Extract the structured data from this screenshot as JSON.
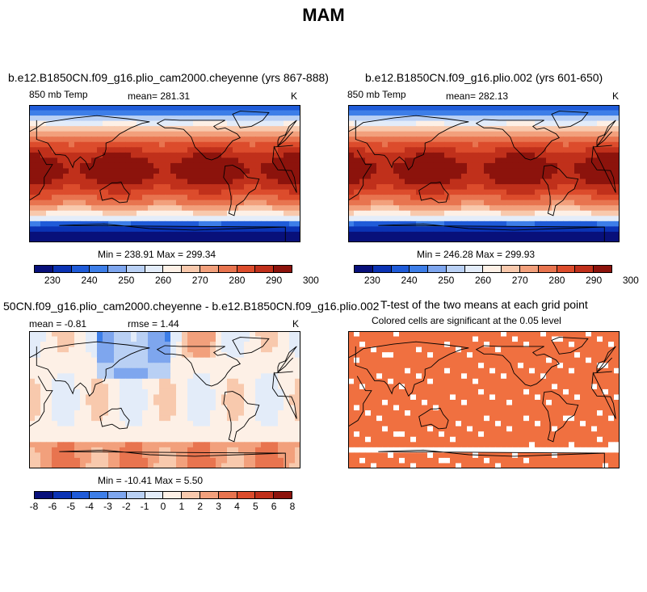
{
  "supertitle": "MAM",
  "panels": [
    {
      "title": "b.e12.B1850CN.f09_g16.plio_cam2000.cheyenne (yrs 867-888)",
      "left": "850 mb Temp",
      "center": "mean= 281.31",
      "right": "K",
      "stats": "Min = 238.91  Max = 299.34",
      "kind": "temp",
      "seed": 1
    },
    {
      "title": "b.e12.B1850CN.f09_g16.plio.002 (yrs 601-650)",
      "left": "850 mb Temp",
      "center": "mean= 282.13",
      "right": "K",
      "stats": "Min = 246.28  Max = 299.93",
      "kind": "temp",
      "seed": 2
    },
    {
      "title": "50CN.f09_g16.plio_cam2000.cheyenne - b.e12.B1850CN.f09_g16.plio.002",
      "left": "mean =  -0.81",
      "center": "rmse =   1.44",
      "right": "K",
      "stats": "Min = -10.41  Max =   5.50",
      "kind": "diff",
      "seed": 3
    },
    {
      "title": "T-test of the two means at each grid point",
      "left": "",
      "center": "Colored cells are significant at the 0.05 level",
      "right": "",
      "stats": "",
      "kind": "ttest",
      "seed": 4
    }
  ],
  "colorbars": {
    "temp": {
      "colors": [
        "#08107a",
        "#0b33b4",
        "#1f5bd8",
        "#3d7ee8",
        "#7ea6ee",
        "#b9d0f4",
        "#e3ecf9",
        "#fdf0e6",
        "#f8c9ad",
        "#f2a07c",
        "#e8744f",
        "#dc4c2c",
        "#c0301b",
        "#8c130c"
      ],
      "ticks": [
        "230",
        "240",
        "250",
        "260",
        "270",
        "280",
        "290",
        "300"
      ]
    },
    "diff": {
      "colors": [
        "#08107a",
        "#0b33b4",
        "#1f5bd8",
        "#3d7ee8",
        "#7ea6ee",
        "#b9d0f4",
        "#e3ecf9",
        "#fdf0e6",
        "#f8c9ad",
        "#f2a07c",
        "#e8744f",
        "#dc4c2c",
        "#c0301b",
        "#8c130c"
      ],
      "ticks": [
        "-8",
        "-6",
        "-5",
        "-4",
        "-3",
        "-2",
        "-1",
        "0",
        "1",
        "2",
        "3",
        "4",
        "5",
        "6",
        "8"
      ]
    }
  },
  "colors": {
    "significant": "#f07040",
    "coastline": "#000000"
  }
}
